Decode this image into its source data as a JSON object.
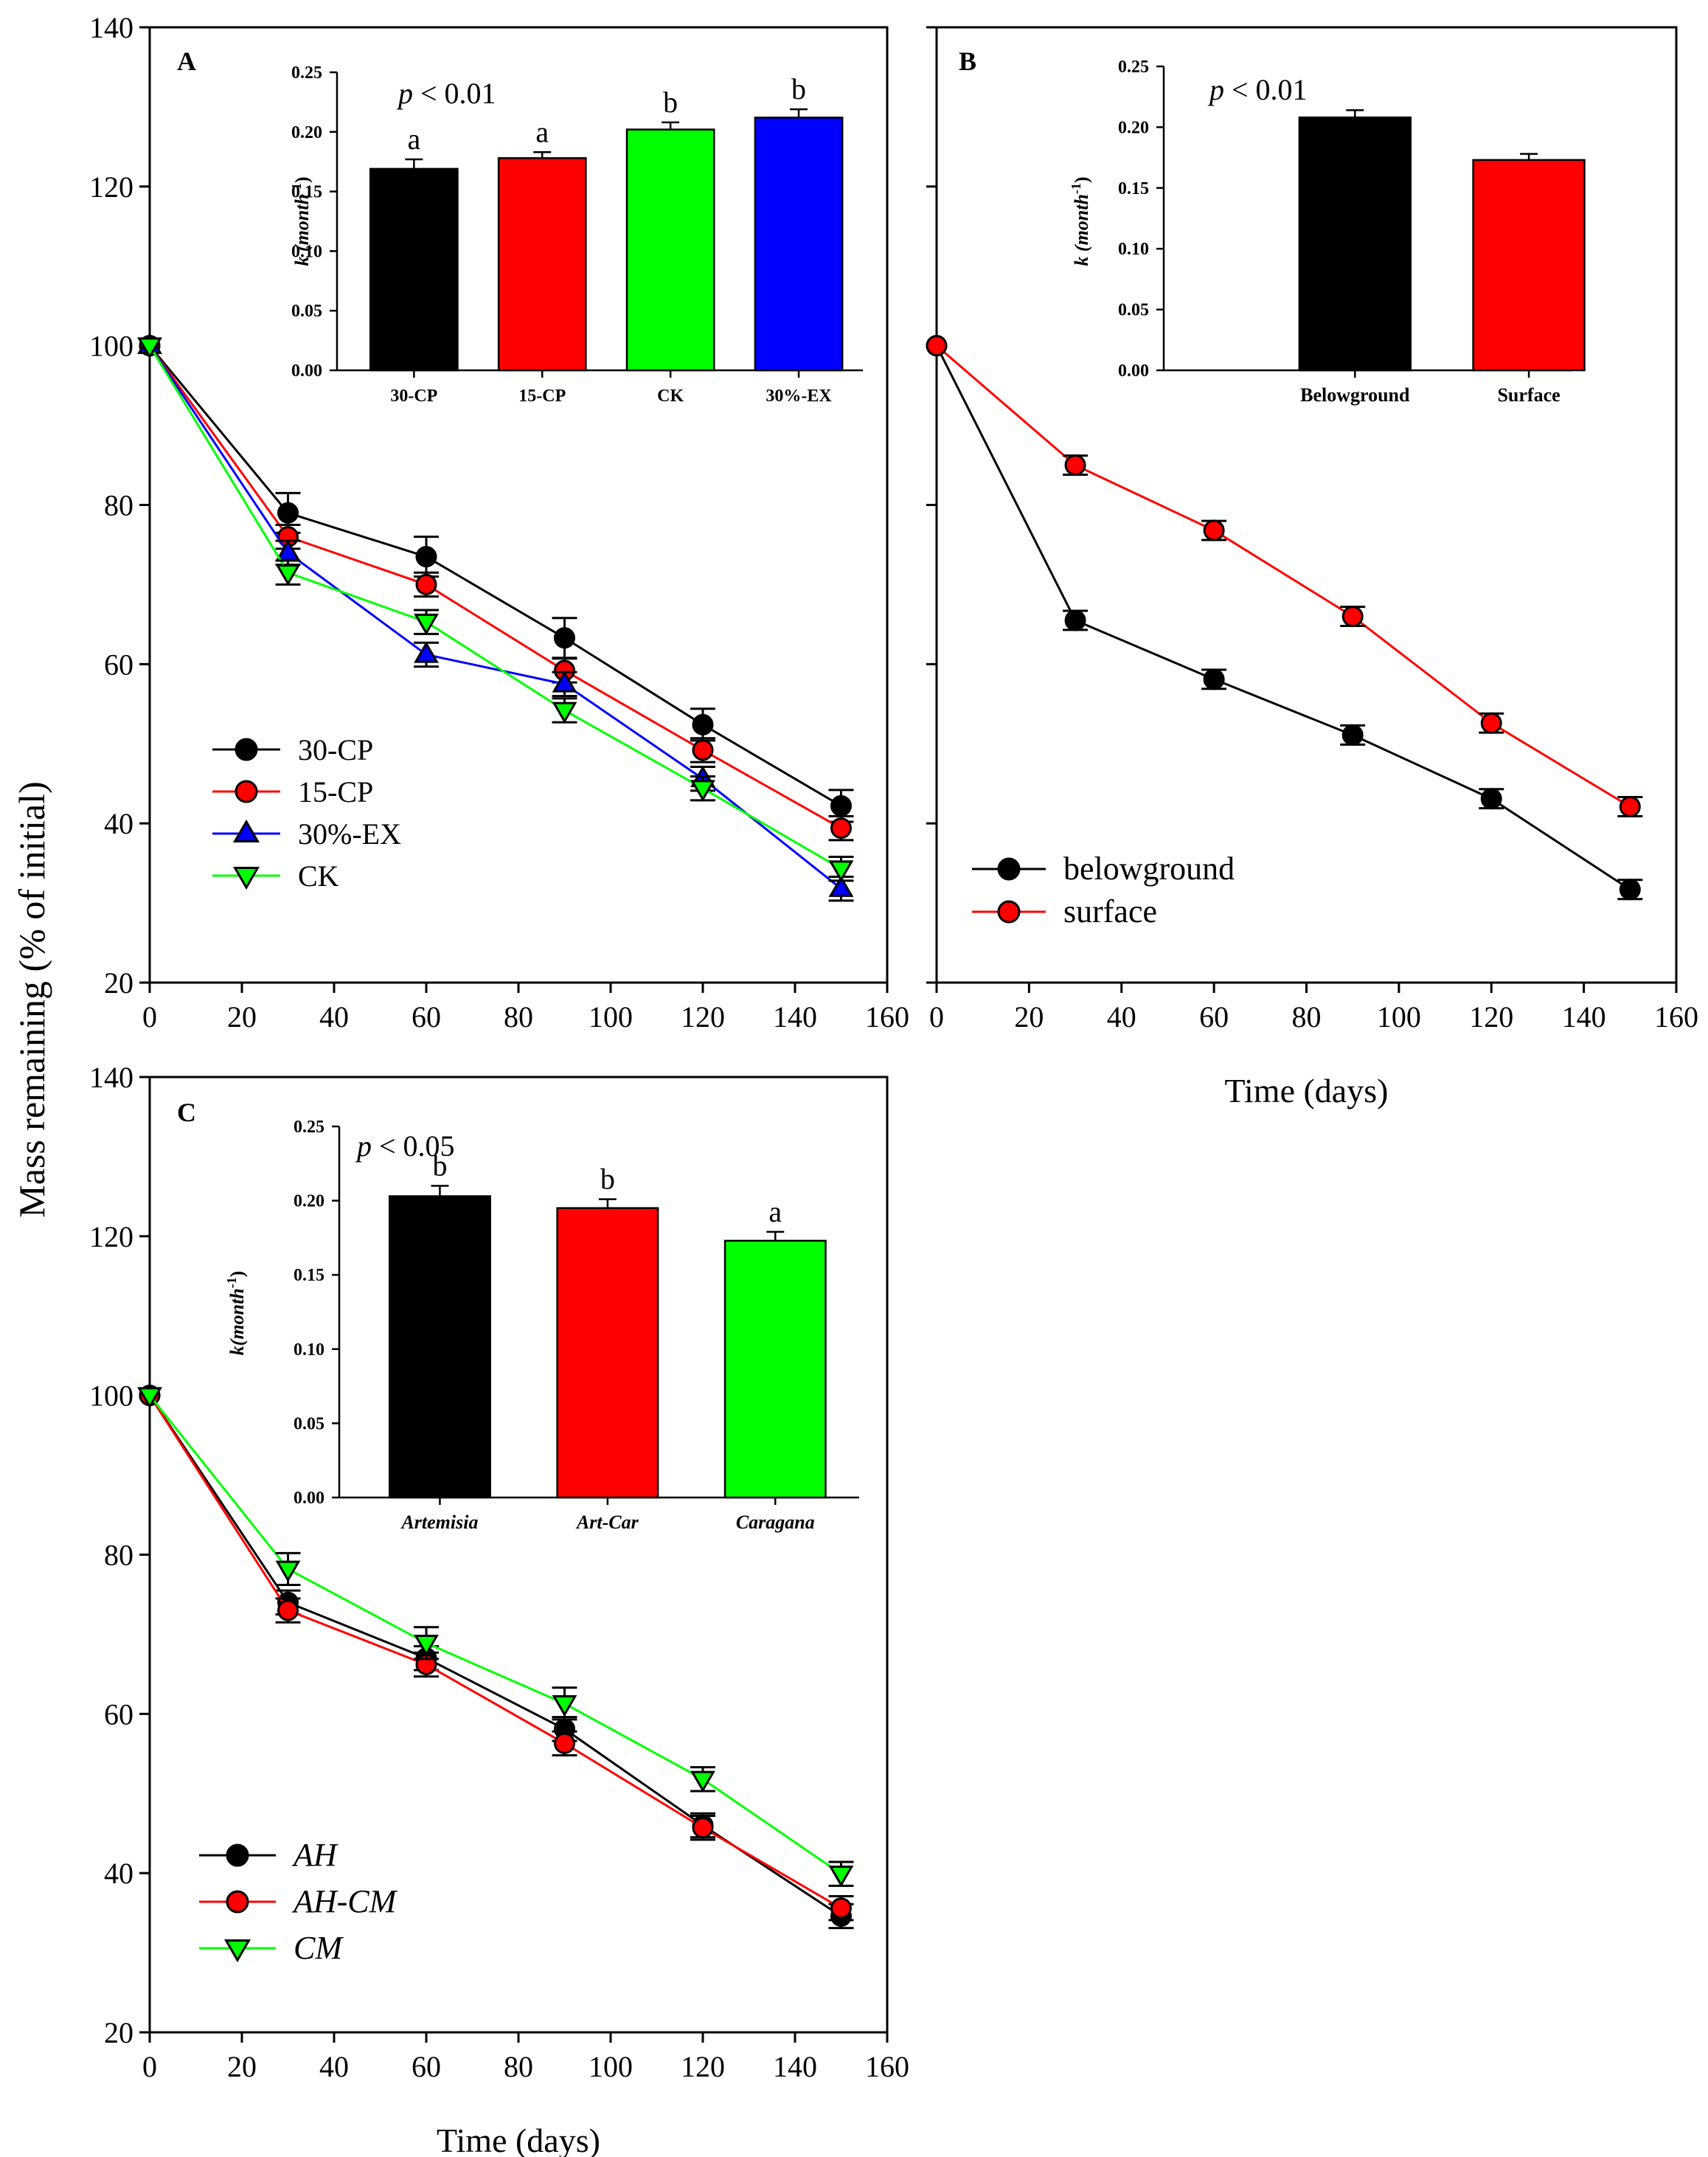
{
  "figure": {
    "ylabel": "Mass remaining (% of initial)",
    "xlabel": "Time (days)"
  },
  "chart_data": [
    {
      "id": "A",
      "type": "line",
      "panel_label": "A",
      "xlabel": "",
      "ylabel": "Mass remaining (% of initial)",
      "xlim": [
        0,
        160
      ],
      "ylim": [
        20,
        140
      ],
      "xticks": [
        "0",
        "20",
        "40",
        "60",
        "80",
        "100",
        "120",
        "140",
        "160"
      ],
      "yticks": [
        "20",
        "40",
        "60",
        "80",
        "100",
        "120",
        "140"
      ],
      "legend_position": "lower-left",
      "legend_italic": false,
      "x": [
        0,
        30,
        60,
        90,
        120,
        150
      ],
      "series": [
        {
          "name": "30-CP",
          "color": "#000000",
          "marker": "circle",
          "values": [
            100,
            79,
            73.5,
            63.3,
            52.4,
            42.2
          ],
          "errors": [
            0,
            2.5,
            2.5,
            2.5,
            2.0,
            2.0
          ]
        },
        {
          "name": "15-CP",
          "color": "#ff0000",
          "marker": "circle",
          "values": [
            100,
            76,
            70,
            59.2,
            49.2,
            39.4
          ],
          "errors": [
            0,
            1.5,
            1.5,
            1.5,
            1.5,
            1.5
          ]
        },
        {
          "name": "30%-EX",
          "color": "#0000ff",
          "marker": "triangle-up",
          "values": [
            100,
            74,
            61.2,
            57.5,
            45.6,
            31.8
          ],
          "errors": [
            0,
            1.5,
            1.5,
            1.5,
            1.5,
            1.5
          ]
        },
        {
          "name": "CK",
          "color": "#00ff00",
          "marker": "triangle-down",
          "values": [
            100,
            71.5,
            65.3,
            54.2,
            44.4,
            34.3
          ],
          "errors": [
            0,
            1.5,
            1.5,
            1.5,
            1.5,
            1.5
          ]
        }
      ],
      "inset": {
        "type": "bar",
        "ylabel": "k (month",
        "ylabel_sup": "-1",
        "ylabel_close": ")",
        "ylabel_italic": false,
        "ylim": [
          0,
          0.25
        ],
        "yticks": [
          "0.00",
          "0.05",
          "0.10",
          "0.15",
          "0.20",
          "0.25"
        ],
        "annotation": "p < 0.01",
        "annotation_p": "p",
        "annotation_rest": " < 0.01",
        "categories": [
          "30-CP",
          "15-CP",
          "CK",
          "30%-EX"
        ],
        "category_italic": false,
        "values": [
          0.169,
          0.178,
          0.202,
          0.212
        ],
        "errors": [
          0.008,
          0.005,
          0.006,
          0.007
        ],
        "colors": [
          "#000000",
          "#ff0000",
          "#00ff00",
          "#0000ff"
        ],
        "letters": [
          "a",
          "a",
          "b",
          "b"
        ]
      }
    },
    {
      "id": "B",
      "type": "line",
      "panel_label": "B",
      "xlabel": "Time (days)",
      "ylabel": "",
      "xlim": [
        0,
        160
      ],
      "ylim": [
        20,
        140
      ],
      "xticks": [
        "0",
        "20",
        "40",
        "60",
        "80",
        "100",
        "120",
        "140",
        "160"
      ],
      "yticks": [],
      "legend_position": "lower-left",
      "legend_italic": false,
      "x": [
        0,
        30,
        60,
        90,
        120,
        150
      ],
      "series": [
        {
          "name": "belowground",
          "color": "#000000",
          "marker": "circle",
          "values": [
            100,
            65.5,
            58.1,
            51.1,
            43.1,
            31.7
          ],
          "errors": [
            0,
            1.2,
            1.2,
            1.2,
            1.2,
            1.2
          ]
        },
        {
          "name": " surface",
          "color": "#ff0000",
          "marker": "circle",
          "values": [
            100,
            85,
            76.8,
            66,
            52.6,
            42.1
          ],
          "errors": [
            0,
            1.2,
            1.2,
            1.2,
            1.2,
            1.2
          ]
        }
      ],
      "inset": {
        "type": "bar",
        "ylabel": "k (month",
        "ylabel_sup": "-1",
        "ylabel_close": ")",
        "ylabel_italic": false,
        "ylim": [
          0,
          0.25
        ],
        "yticks": [
          "0.00",
          "0.05",
          "0.10",
          "0.15",
          "0.20",
          "0.25"
        ],
        "annotation": "p < 0.01",
        "annotation_p": "p",
        "annotation_rest": " < 0.01",
        "categories": [
          "Belowground",
          "Surface"
        ],
        "category_italic": false,
        "values": [
          0.208,
          0.173
        ],
        "errors": [
          0.006,
          0.005
        ],
        "colors": [
          "#000000",
          "#ff0000"
        ],
        "letters": [
          "",
          ""
        ]
      }
    },
    {
      "id": "C",
      "type": "line",
      "panel_label": "C",
      "xlabel": "Time (days)",
      "ylabel": "",
      "xlim": [
        0,
        160
      ],
      "ylim": [
        20,
        140
      ],
      "xticks": [
        "0",
        "20",
        "40",
        "60",
        "80",
        "100",
        "120",
        "140",
        "160"
      ],
      "yticks": [
        "20",
        "40",
        "60",
        "80",
        "100",
        "120",
        "140"
      ],
      "legend_position": "lower-left",
      "legend_italic": true,
      "x": [
        0,
        30,
        60,
        90,
        120,
        150
      ],
      "series": [
        {
          "name": "AH",
          "color": "#000000",
          "marker": "circle",
          "values": [
            100,
            74,
            67,
            58.1,
            46,
            34.6
          ],
          "errors": [
            0,
            1.5,
            1.5,
            1.5,
            1.5,
            1.5
          ]
        },
        {
          "name": "AH-CM",
          "color": "#ff0000",
          "marker": "circle",
          "values": [
            100,
            73,
            66.2,
            56.3,
            45.7,
            35.6
          ],
          "errors": [
            0,
            1.5,
            1.5,
            1.5,
            1.5,
            1.5
          ]
        },
        {
          "name": "CM",
          "color": "#00ff00",
          "marker": "triangle-down",
          "values": [
            100,
            78.2,
            68.9,
            61.3,
            51.8,
            39.9
          ],
          "errors": [
            0,
            2.0,
            2.0,
            2.0,
            1.5,
            1.5
          ]
        }
      ],
      "inset": {
        "type": "bar",
        "ylabel": "k(month",
        "ylabel_sup": "-1",
        "ylabel_close": ")",
        "ylabel_italic": true,
        "ylim": [
          0,
          0.25
        ],
        "yticks": [
          "0.00",
          "0.05",
          "0.10",
          "0.15",
          "0.20",
          "0.25"
        ],
        "annotation": "p < 0.05",
        "annotation_p": "p",
        "annotation_rest": " < 0.05",
        "categories": [
          "Artemisia",
          "Art-Car",
          "Caragana"
        ],
        "category_italic": true,
        "values": [
          0.203,
          0.195,
          0.173
        ],
        "errors": [
          0.007,
          0.006,
          0.006
        ],
        "colors": [
          "#000000",
          "#ff0000",
          "#00ff00"
        ],
        "letters": [
          "b",
          "b",
          "a"
        ]
      }
    }
  ]
}
